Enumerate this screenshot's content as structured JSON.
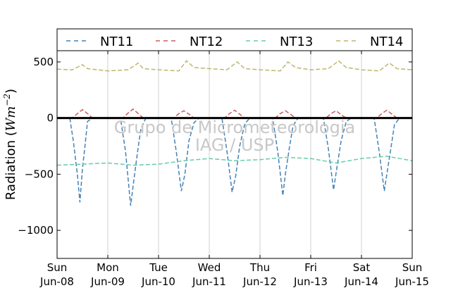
{
  "chart_data": {
    "type": "line",
    "title": "",
    "xlabel": "",
    "ylabel": "Radiation (",
    "ylabel_unit": "Wm",
    "ylabel_exp": "−2",
    "ylabel_close": ")",
    "ylim": [
      -1250,
      600
    ],
    "yticks": [
      500,
      0,
      -500,
      -1000
    ],
    "ytick_labels": [
      "500",
      "0",
      "−500",
      "−1000"
    ],
    "xlim": [
      0,
      7
    ],
    "xticks": [
      0,
      1,
      2,
      3,
      4,
      5,
      6,
      7
    ],
    "xtick_labels": [
      [
        "Sun",
        "Jun-08"
      ],
      [
        "Mon",
        "Jun-09"
      ],
      [
        "Tue",
        "Jun-10"
      ],
      [
        "Wed",
        "Jun-11"
      ],
      [
        "Thu",
        "Jun-12"
      ],
      [
        "Fri",
        "Jun-13"
      ],
      [
        "Sat",
        "Jun-14"
      ],
      [
        "Sun",
        "Jun-15"
      ]
    ],
    "grid": "vertical",
    "zero_line": true,
    "legend": {
      "position": "top",
      "entries": [
        "NT11",
        "NT12",
        "NT13",
        "NT14"
      ]
    },
    "watermark": [
      "Grupo de Micrometeorologia",
      "IAG / USP"
    ],
    "series": [
      {
        "name": "NT11",
        "color": "#4682b4",
        "x": [
          0,
          0.25,
          0.32,
          0.4,
          0.45,
          0.5,
          0.55,
          0.6,
          0.7,
          0.8,
          1.25,
          1.35,
          1.45,
          1.5,
          1.58,
          1.65,
          1.75,
          1.85,
          2.25,
          2.35,
          2.45,
          2.52,
          2.6,
          2.7,
          2.8,
          3.25,
          3.35,
          3.45,
          3.52,
          3.6,
          3.7,
          3.8,
          4.25,
          4.35,
          4.45,
          4.5,
          4.58,
          4.65,
          4.75,
          4.85,
          5.25,
          5.35,
          5.45,
          5.52,
          5.6,
          5.7,
          5.8,
          6.25,
          6.35,
          6.45,
          6.5,
          6.57,
          6.65,
          6.75,
          6.85,
          7
        ],
        "y": [
          0,
          0,
          -200,
          -500,
          -750,
          -450,
          -250,
          -30,
          0,
          0,
          0,
          -300,
          -780,
          -600,
          -320,
          -100,
          0,
          0,
          0,
          -300,
          -650,
          -500,
          -200,
          -40,
          0,
          0,
          -300,
          -660,
          -520,
          -250,
          -50,
          0,
          0,
          -300,
          -690,
          -500,
          -260,
          -70,
          0,
          0,
          0,
          -280,
          -640,
          -430,
          -200,
          -30,
          0,
          0,
          -300,
          -650,
          -500,
          -300,
          -60,
          0,
          0,
          0
        ]
      },
      {
        "name": "NT12",
        "color": "#cd5c5c",
        "x": [
          0,
          0.3,
          0.4,
          0.5,
          0.6,
          0.7,
          1.3,
          1.4,
          1.5,
          1.6,
          1.7,
          2.3,
          2.4,
          2.5,
          2.6,
          2.7,
          3.3,
          3.4,
          3.5,
          3.6,
          3.7,
          4.3,
          4.4,
          4.5,
          4.6,
          4.7,
          5.3,
          5.4,
          5.5,
          5.6,
          5.7,
          6.3,
          6.4,
          6.5,
          6.6,
          6.7,
          7
        ],
        "y": [
          0,
          0,
          40,
          75,
          40,
          0,
          0,
          45,
          80,
          40,
          0,
          0,
          40,
          65,
          35,
          0,
          0,
          40,
          70,
          35,
          0,
          0,
          40,
          65,
          35,
          0,
          0,
          40,
          65,
          30,
          0,
          0,
          40,
          70,
          35,
          0,
          0
        ]
      },
      {
        "name": "NT13",
        "color": "#66cdaa",
        "x": [
          0,
          0.5,
          1,
          1.5,
          2,
          2.5,
          3,
          3.5,
          4,
          4.5,
          5,
          5.5,
          6,
          6.5,
          7
        ],
        "y": [
          -420,
          -410,
          -400,
          -420,
          -410,
          -380,
          -360,
          -380,
          -370,
          -350,
          -360,
          -400,
          -360,
          -340,
          -380
        ]
      },
      {
        "name": "NT14",
        "color": "#bdb76b",
        "x": [
          0,
          0.3,
          0.5,
          0.6,
          1,
          1.4,
          1.6,
          1.7,
          2,
          2.4,
          2.55,
          2.7,
          3,
          3.35,
          3.55,
          3.7,
          4,
          4.4,
          4.55,
          4.7,
          5,
          5.35,
          5.55,
          5.7,
          6,
          6.35,
          6.55,
          6.7,
          7
        ],
        "y": [
          435,
          430,
          475,
          440,
          420,
          430,
          490,
          440,
          430,
          420,
          510,
          450,
          440,
          430,
          500,
          440,
          430,
          420,
          500,
          450,
          430,
          440,
          510,
          450,
          430,
          420,
          490,
          440,
          430
        ]
      }
    ]
  }
}
